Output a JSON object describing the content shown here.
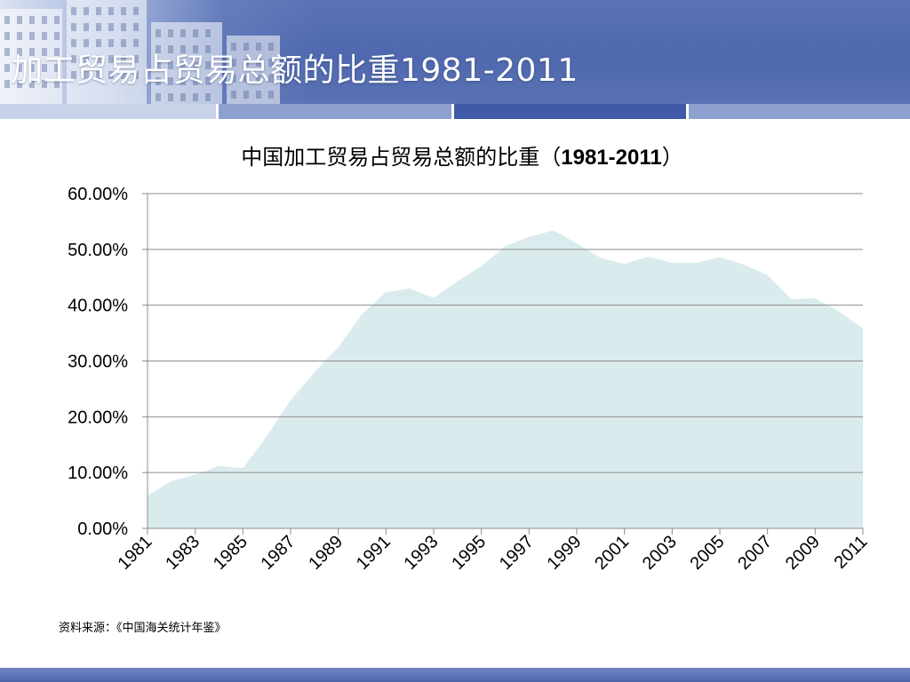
{
  "slide": {
    "title": "加工贸易占贸易总额的比重1981-2011",
    "source": "资料来源：《中国海关统计年鉴》"
  },
  "colors": {
    "header": "#5168ae",
    "area_fill": "#daebed",
    "grid": "#8c8c8c"
  },
  "chart_data": {
    "type": "area",
    "title_prefix": "中国加工贸易占贸易总额的比重（",
    "title_years": "1981-2011",
    "title_suffix": "）",
    "x": [
      1981,
      1982,
      1983,
      1984,
      1985,
      1986,
      1987,
      1988,
      1989,
      1990,
      1991,
      1992,
      1993,
      1994,
      1995,
      1996,
      1997,
      1998,
      1999,
      2000,
      2001,
      2002,
      2003,
      2004,
      2005,
      2006,
      2007,
      2008,
      2009,
      2010,
      2011
    ],
    "x_tick_labels": [
      "1981",
      "1983",
      "1985",
      "1987",
      "1989",
      "1991",
      "1993",
      "1995",
      "1997",
      "1999",
      "2001",
      "2003",
      "2005",
      "2007",
      "2009",
      "2011"
    ],
    "values": [
      5.9,
      8.5,
      9.6,
      11.2,
      10.8,
      16.5,
      23.0,
      28.0,
      32.5,
      38.4,
      42.3,
      43.0,
      41.3,
      44.3,
      47.0,
      50.6,
      52.2,
      53.4,
      51.1,
      48.5,
      47.4,
      48.7,
      47.6,
      47.6,
      48.6,
      47.3,
      45.4,
      41.1,
      41.2,
      38.9,
      35.8
    ],
    "y_tick_labels": [
      "0.00%",
      "10.00%",
      "20.00%",
      "30.00%",
      "40.00%",
      "50.00%",
      "60.00%"
    ],
    "ylim": [
      0,
      60
    ],
    "grid": true
  }
}
